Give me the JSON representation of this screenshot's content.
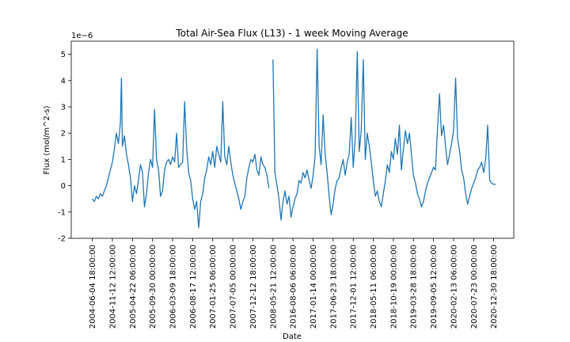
{
  "chart_data": {
    "type": "line",
    "title": "Total Air-Sea Flux (L13) - 1 week Moving Average",
    "xlabel": "Date",
    "ylabel": "Flux (mol/m^2-s)",
    "y_offset_label": "1e−6",
    "y_scale": 1e-06,
    "ylim": [
      -2,
      5.5
    ],
    "y_ticks": [
      -2,
      -1,
      0,
      1,
      2,
      3,
      4,
      5
    ],
    "x_tick_labels": [
      "2004-06-04 18:00:00",
      "2004-11-12 12:00:00",
      "2005-04-22 06:00:00",
      "2005-09-30 00:00:00",
      "2006-03-09 18:00:00",
      "2006-08-17 12:00:00",
      "2007-01-25 06:00:00",
      "2007-07-05 00:00:00",
      "2007-12-12 18:00:00",
      "2008-05-21 12:00:00",
      "2016-08-06 06:00:00",
      "2017-01-14 00:00:00",
      "2017-06-23 18:00:00",
      "2017-12-01 12:00:00",
      "2018-05-11 06:00:00",
      "2018-10-19 00:00:00",
      "2019-03-28 18:00:00",
      "2019-09-05 12:00:00",
      "2020-02-13 06:00:00",
      "2020-07-23 00:00:00",
      "2020-12-30 18:00:00"
    ],
    "x_tick_positions": [
      0,
      1,
      2,
      3,
      4,
      5,
      6,
      7,
      8,
      9,
      10,
      11,
      12,
      13,
      14,
      15,
      16,
      17,
      18,
      19,
      20
    ],
    "xlim": [
      -1.05,
      21.0
    ],
    "grid": false,
    "line_color": "#1f77b4",
    "series": [
      {
        "x": [
          0.0,
          0.1,
          0.2,
          0.3,
          0.4,
          0.5,
          0.6,
          0.7,
          0.8,
          0.9,
          1.0,
          1.1,
          1.2,
          1.3,
          1.4,
          1.45,
          1.5,
          1.6,
          1.7,
          1.8,
          1.9,
          2.0,
          2.1,
          2.2,
          2.3,
          2.4,
          2.5,
          2.6,
          2.7,
          2.8,
          2.9,
          3.0,
          3.1,
          3.2,
          3.3,
          3.4,
          3.5,
          3.6,
          3.7,
          3.8,
          3.9,
          4.0,
          4.1,
          4.2,
          4.3,
          4.4,
          4.5,
          4.6,
          4.7,
          4.8,
          4.9,
          5.0,
          5.1,
          5.2,
          5.3,
          5.4,
          5.5,
          5.6,
          5.7,
          5.8,
          5.9,
          6.0,
          6.1,
          6.2,
          6.3,
          6.4,
          6.5,
          6.6,
          6.7,
          6.8,
          6.9,
          7.0,
          7.1,
          7.2,
          7.3,
          7.4,
          7.5,
          7.6,
          7.7,
          7.8,
          7.9,
          8.0,
          8.1,
          8.2,
          8.3,
          8.4,
          8.5,
          8.6,
          8.7,
          8.8
        ],
        "y": [
          -0.5,
          -0.6,
          -0.4,
          -0.5,
          -0.3,
          -0.4,
          -0.2,
          0.0,
          0.3,
          0.6,
          0.9,
          1.4,
          2.0,
          1.6,
          2.4,
          4.1,
          1.5,
          1.9,
          1.2,
          0.8,
          0.3,
          -0.6,
          0.0,
          -0.3,
          0.2,
          0.8,
          0.5,
          -0.8,
          -0.3,
          0.5,
          1.0,
          0.7,
          2.9,
          1.0,
          0.6,
          -0.4,
          -0.2,
          0.6,
          0.9,
          1.0,
          0.8,
          1.1,
          0.9,
          2.0,
          0.7,
          0.8,
          0.9,
          3.2,
          1.4,
          0.5,
          0.2,
          -0.5,
          -0.9,
          -0.6,
          -1.6,
          -0.6,
          -0.3,
          0.3,
          0.6,
          1.1,
          0.8,
          1.3,
          0.7,
          1.5,
          1.2,
          0.9,
          3.2,
          1.1,
          0.8,
          1.5,
          0.9,
          0.4,
          0.1,
          -0.2,
          -0.5,
          -0.9,
          -0.6,
          -0.4,
          0.3,
          0.7,
          1.0,
          0.9,
          1.2,
          0.6,
          0.4,
          1.1,
          0.8,
          0.7,
          0.4,
          -0.1
        ]
      },
      {
        "x": [
          9.0,
          9.1,
          9.2,
          9.3,
          9.4,
          9.5,
          9.6,
          9.7,
          9.8,
          9.9,
          10.0,
          10.1,
          10.2,
          10.3,
          10.4,
          10.5,
          10.6,
          10.7,
          10.8,
          10.9,
          11.0,
          11.1,
          11.2,
          11.3,
          11.4,
          11.5,
          11.6,
          11.7,
          11.8,
          11.9,
          12.0,
          12.1,
          12.2,
          12.3,
          12.4,
          12.5,
          12.6,
          12.7,
          12.8,
          12.9,
          13.0,
          13.1,
          13.2,
          13.3,
          13.4,
          13.5,
          13.6,
          13.7,
          13.8,
          13.9,
          14.0,
          14.1,
          14.2,
          14.3,
          14.4,
          14.5,
          14.6,
          14.7,
          14.8,
          14.9,
          15.0,
          15.1,
          15.2,
          15.3,
          15.4,
          15.5,
          15.6,
          15.7,
          15.8,
          15.9,
          16.0,
          16.1,
          16.2,
          16.3,
          16.4,
          16.5,
          16.6,
          16.7,
          16.8,
          16.9,
          17.0,
          17.1,
          17.2,
          17.3,
          17.4,
          17.5,
          17.6,
          17.7,
          17.8,
          17.9,
          18.0,
          18.1,
          18.2,
          18.3,
          18.4,
          18.5,
          18.6,
          18.7,
          18.8,
          18.9,
          19.0,
          19.1,
          19.2,
          19.3,
          19.4,
          19.5,
          19.6,
          19.7,
          19.8,
          19.9,
          20.0,
          20.1
        ],
        "y": [
          4.8,
          0.5,
          0.0,
          -0.5,
          -1.3,
          -0.6,
          -0.2,
          -0.7,
          -0.4,
          -1.2,
          -0.8,
          -0.5,
          -0.3,
          0.2,
          0.1,
          0.5,
          0.3,
          0.6,
          0.2,
          -0.1,
          0.4,
          1.1,
          5.2,
          1.5,
          0.8,
          2.7,
          1.2,
          0.5,
          -0.4,
          -1.1,
          -0.7,
          -0.1,
          0.2,
          0.3,
          0.7,
          1.0,
          0.4,
          0.9,
          1.2,
          2.6,
          0.7,
          1.8,
          5.1,
          1.3,
          2.1,
          4.8,
          1.0,
          2.0,
          1.5,
          0.9,
          0.2,
          -0.4,
          -0.2,
          -0.6,
          -0.8,
          -0.3,
          0.2,
          0.8,
          0.5,
          1.3,
          1.0,
          1.8,
          1.2,
          2.3,
          0.6,
          1.4,
          2.1,
          1.6,
          2.0,
          1.2,
          0.4,
          0.1,
          -0.3,
          -0.5,
          -0.8,
          -0.6,
          -0.2,
          0.1,
          0.3,
          0.5,
          0.7,
          0.6,
          2.2,
          3.5,
          1.9,
          2.3,
          1.5,
          0.8,
          1.2,
          1.6,
          2.1,
          4.1,
          1.8,
          1.3,
          0.6,
          0.3,
          -0.3,
          -0.7,
          -0.4,
          -0.1,
          0.1,
          0.3,
          0.6,
          0.7,
          0.9,
          0.5,
          1.0,
          2.3,
          0.2,
          0.1,
          0.05,
          0.05
        ]
      }
    ]
  }
}
